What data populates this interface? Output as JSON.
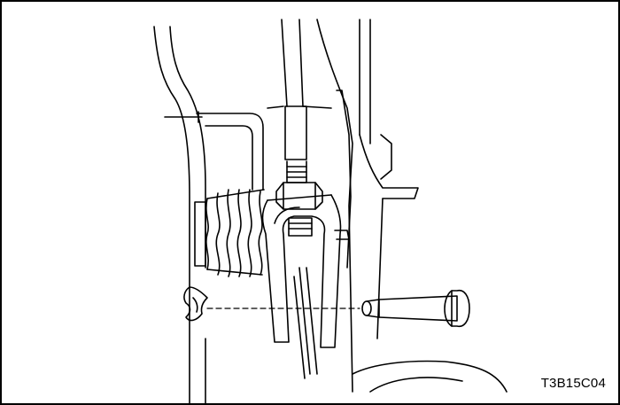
{
  "figure": {
    "code": "T3B15C04"
  },
  "style": {
    "line_color": "#000000",
    "background": "#ffffff"
  },
  "parts": [
    {
      "name": "body-panel-icon"
    },
    {
      "name": "shift-rod-icon"
    },
    {
      "name": "lock-nut-icon"
    },
    {
      "name": "clevis-yoke-icon"
    },
    {
      "name": "bellows-boot-icon"
    },
    {
      "name": "retaining-clip-icon"
    },
    {
      "name": "clevis-pin-icon"
    },
    {
      "name": "lever-bracket-icon"
    }
  ]
}
